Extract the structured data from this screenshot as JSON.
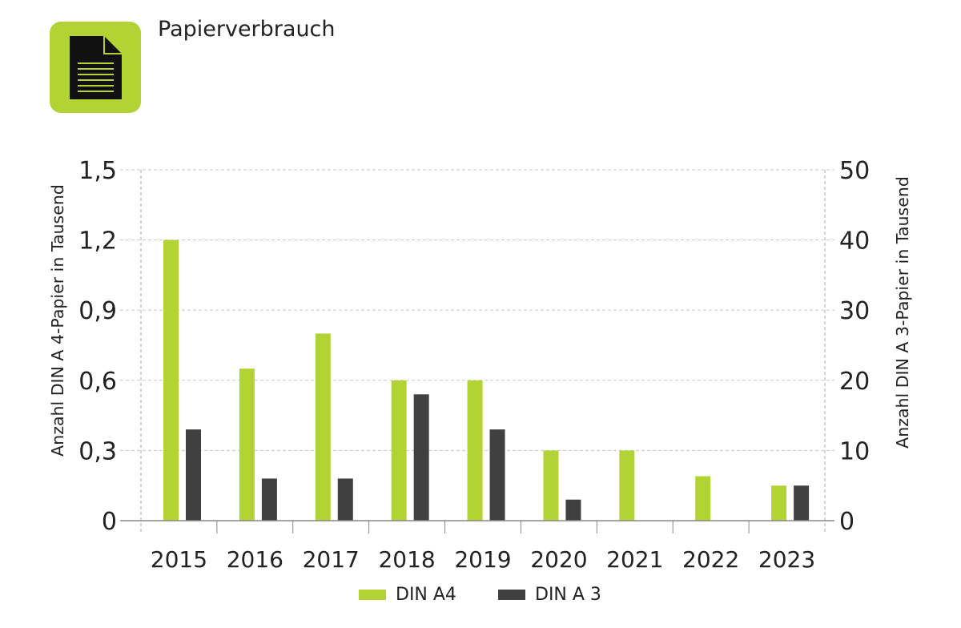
{
  "header": {
    "title": "Papierverbrauch",
    "icon": "document-icon",
    "icon_color": "#b3d334"
  },
  "colors": {
    "din_a4": "#b3d334",
    "din_a3": "#404040"
  },
  "chart_data": {
    "type": "bar",
    "categories": [
      "2015",
      "2016",
      "2017",
      "2018",
      "2019",
      "2020",
      "2021",
      "2022",
      "2023"
    ],
    "series": [
      {
        "name": "DIN A4",
        "axis": "left",
        "values": [
          1.2,
          0.65,
          0.8,
          0.6,
          0.6,
          0.3,
          0.3,
          0.19,
          0.15
        ]
      },
      {
        "name": "DIN A 3",
        "axis": "right",
        "values": [
          13,
          6,
          6,
          18,
          13,
          3,
          0,
          0,
          5
        ]
      }
    ],
    "ylabel": "Anzahl DIN A 4-Papier in Tausend",
    "y2label": "Anzahl DIN A 3-Papier in Tausend",
    "ylim": [
      0,
      1.5
    ],
    "y2lim": [
      0,
      50
    ],
    "yticks": [
      "0",
      "0,3",
      "0,6",
      "0,9",
      "1,2",
      "1,5"
    ],
    "y2ticks": [
      "0",
      "10",
      "20",
      "30",
      "40",
      "50"
    ],
    "grid": true,
    "legend_position": "bottom"
  }
}
